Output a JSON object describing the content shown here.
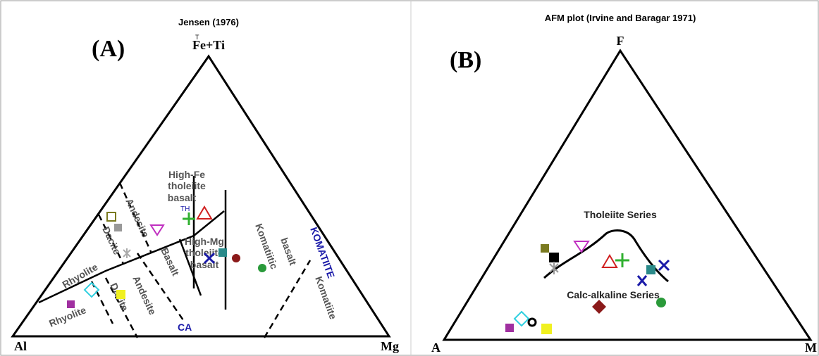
{
  "panels": [
    {
      "label": "(A)",
      "title": "Jensen (1976)",
      "apex": {
        "main": "Fe+Ti",
        "superscript": "T"
      },
      "left": "Al",
      "right": "Mg",
      "regions": [
        "High-Fe",
        "tholeiite",
        "basalt",
        "TH",
        "Andesite",
        "Dacite",
        "Rhyolite",
        "High-Mg",
        "tholeiite",
        "basalt",
        "Komatiitic",
        "basalt",
        "KOMATIITE",
        "Komatiite",
        "CA",
        "Basalt",
        "Andesite",
        "Dacite",
        "Rhyolite"
      ]
    },
    {
      "label": "(B)",
      "title": "AFM plot (Irvine and Baragar 1971)",
      "apex": "F",
      "left": "A",
      "right": "M",
      "regions": [
        "Tholeiite Series",
        "Calc-alkaline Series"
      ]
    }
  ]
}
